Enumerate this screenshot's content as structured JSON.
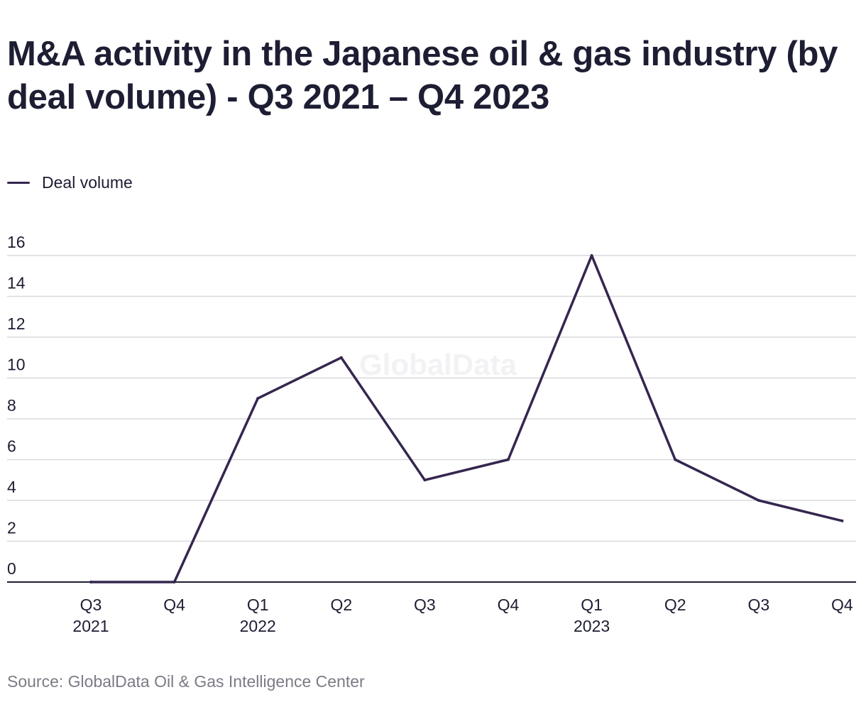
{
  "title": "M&A activity in the Japanese oil & gas industry (by deal volume) - Q3 2021 – Q4 2023",
  "source": "Source: GlobalData Oil & Gas Intelligence Center",
  "watermark": "GlobalData",
  "colors": {
    "series": "#35264f",
    "grid": "#d9d9de",
    "axis": "#1d1d33"
  },
  "chart_data": {
    "type": "line",
    "title": "M&A activity in the Japanese oil & gas industry (by deal volume) - Q3 2021 – Q4 2023",
    "xlabel": "",
    "ylabel": "",
    "ylim": [
      0,
      16
    ],
    "yticks": [
      0,
      2,
      4,
      6,
      8,
      10,
      12,
      14,
      16
    ],
    "grid": true,
    "legend_position": "top-left",
    "categories": [
      {
        "quarter": "Q3",
        "year": "2021"
      },
      {
        "quarter": "Q4",
        "year": ""
      },
      {
        "quarter": "Q1",
        "year": "2022"
      },
      {
        "quarter": "Q2",
        "year": ""
      },
      {
        "quarter": "Q3",
        "year": ""
      },
      {
        "quarter": "Q4",
        "year": ""
      },
      {
        "quarter": "Q1",
        "year": "2023"
      },
      {
        "quarter": "Q2",
        "year": ""
      },
      {
        "quarter": "Q3",
        "year": ""
      },
      {
        "quarter": "Q4",
        "year": ""
      }
    ],
    "series": [
      {
        "name": "Deal volume",
        "color": "#35264f",
        "values": [
          0,
          0,
          9,
          11,
          5,
          6,
          16,
          6,
          4,
          3
        ]
      }
    ]
  }
}
